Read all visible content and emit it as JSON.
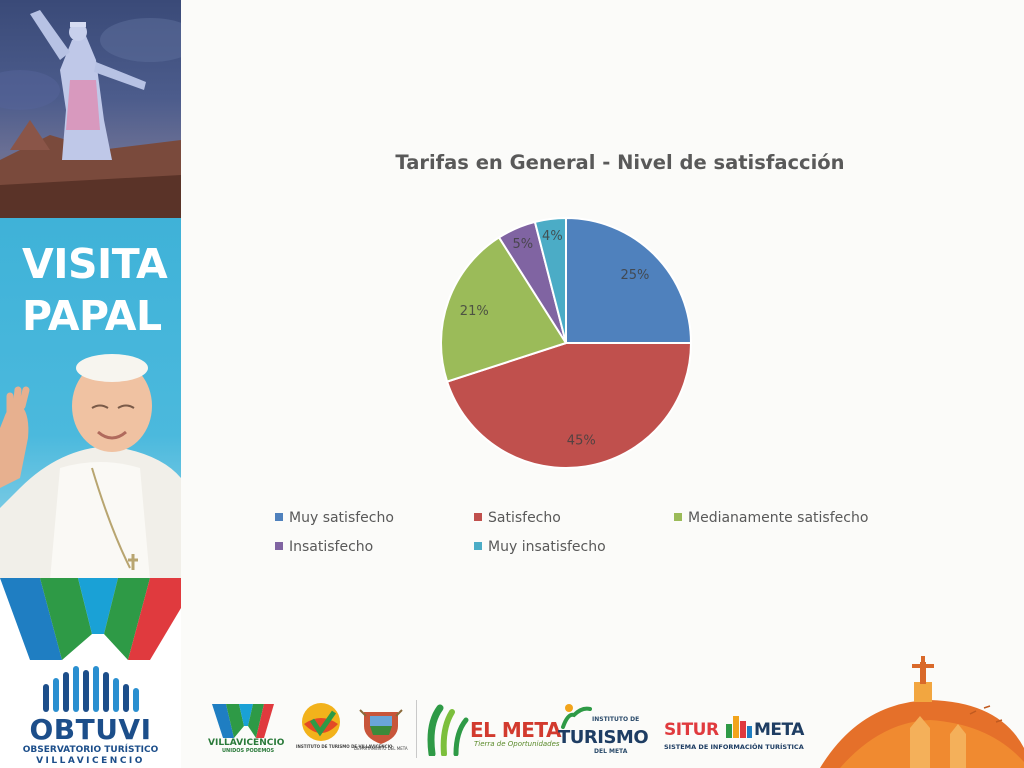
{
  "banner": {
    "visit_line1": "VISITA",
    "visit_line2": "PAPAL",
    "org_name": "OBTUVI",
    "org_sub1": "OBSERVATORIO TURÍSTICO",
    "org_sub2": "VILLAVICENCIO"
  },
  "colors": {
    "banner_blue": "#3fb2d8",
    "org_blue": "#1c4e8a",
    "slice_blue": "#4f81bd",
    "slice_red": "#c0504d",
    "slice_green": "#9bbb59",
    "slice_purple": "#8064a2",
    "slice_aqua": "#4bacc6"
  },
  "chart_data": {
    "type": "pie",
    "title": "Tarifas en General - Nivel de satisfacción",
    "categories": [
      "Muy satisfecho",
      "Satisfecho",
      "Medianamente satisfecho",
      "Insatisfecho",
      "Muy insatisfecho"
    ],
    "values": [
      25,
      45,
      21,
      5,
      4
    ],
    "data_labels": [
      "25%",
      "45%",
      "21%",
      "5%",
      "4%"
    ],
    "colors": [
      "#4f81bd",
      "#c0504d",
      "#9bbb59",
      "#8064a2",
      "#4bacc6"
    ],
    "legend_position": "bottom"
  },
  "footer": {
    "logo1_text": "VILLAVICENCIO",
    "logo1_sub": "UNIDOS PODEMOS",
    "logo2_text": "INSTITUTO DE TURISMO DE VILLAVICENCIO",
    "logo3_text": "DEPARTAMENTO DEL META",
    "logo4_text": "EL META",
    "logo4_sub": "Tierra de Oportunidades",
    "logo5_small": "INSTITUTO DE",
    "logo5_main": "TURISMO",
    "logo5_sub": "DEL META",
    "logo6_a": "SITUR",
    "logo6_b": "META",
    "logo6_sub": "SISTEMA DE INFORMACIÓN TURÍSTICA"
  }
}
